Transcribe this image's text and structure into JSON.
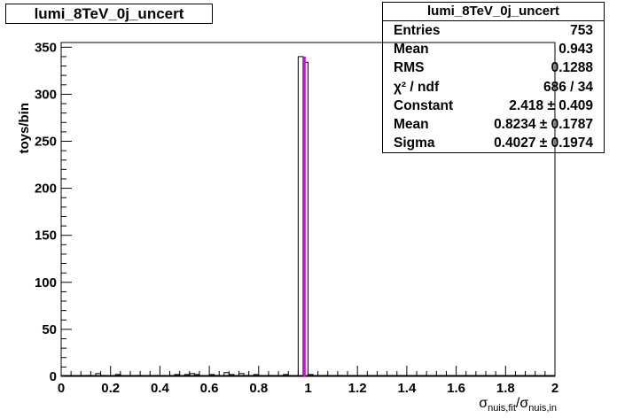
{
  "title_box": {
    "text": "lumi_8TeV_0j_uncert"
  },
  "stats": {
    "header": "lumi_8TeV_0j_uncert",
    "rows": [
      {
        "label": "Entries",
        "value": "753"
      },
      {
        "label": "Mean",
        "value": "0.943"
      },
      {
        "label": "RMS",
        "value": "0.1288"
      },
      {
        "label": "χ² / ndf",
        "value": "686 / 34"
      },
      {
        "label": "Constant",
        "value": "2.418 ± 0.409"
      },
      {
        "label": "Mean",
        "value": "0.8234 ± 0.1787"
      },
      {
        "label": "Sigma",
        "value": "0.4027 ± 0.1974"
      }
    ]
  },
  "chart_data": {
    "type": "bar",
    "title": "lumi_8TeV_0j_uncert",
    "ylabel": "toys/bin",
    "xlabel_main": "σ",
    "xlabel_sub1": "nuis,fit",
    "xlabel_sep": "/σ",
    "xlabel_sub2": "nuis,in",
    "xlim": [
      0,
      2
    ],
    "ylim": [
      0,
      355
    ],
    "x_ticks": [
      "0",
      "0.2",
      "0.4",
      "0.6",
      "0.8",
      "1",
      "1.2",
      "1.4",
      "1.6",
      "1.8",
      "2"
    ],
    "y_ticks": [
      "0",
      "50",
      "100",
      "150",
      "200",
      "250",
      "300",
      "350"
    ],
    "bin_width": 0.02,
    "histogram": [
      {
        "x": 0.1,
        "y": 1
      },
      {
        "x": 0.14,
        "y": 3
      },
      {
        "x": 0.16,
        "y": 1
      },
      {
        "x": 0.22,
        "y": 2
      },
      {
        "x": 0.3,
        "y": 1
      },
      {
        "x": 0.38,
        "y": 1
      },
      {
        "x": 0.46,
        "y": 2
      },
      {
        "x": 0.5,
        "y": 2
      },
      {
        "x": 0.52,
        "y": 3
      },
      {
        "x": 0.54,
        "y": 2
      },
      {
        "x": 0.6,
        "y": 2
      },
      {
        "x": 0.62,
        "y": 1
      },
      {
        "x": 0.66,
        "y": 4
      },
      {
        "x": 0.68,
        "y": 2
      },
      {
        "x": 0.72,
        "y": 3
      },
      {
        "x": 0.74,
        "y": 1
      },
      {
        "x": 0.78,
        "y": 2
      },
      {
        "x": 0.84,
        "y": 1
      },
      {
        "x": 0.9,
        "y": 2
      },
      {
        "x": 0.96,
        "y": 340
      },
      {
        "x": 0.98,
        "y": 334
      },
      {
        "x": 1.0,
        "y": 2
      },
      {
        "x": 1.06,
        "y": 1
      },
      {
        "x": 1.12,
        "y": 1
      }
    ],
    "fit_color": "#e000e0",
    "fit_x": 0.985,
    "fit_y": 340,
    "grid": false
  }
}
